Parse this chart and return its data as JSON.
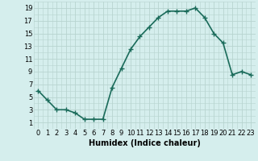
{
  "x": [
    0,
    1,
    2,
    3,
    4,
    5,
    6,
    7,
    8,
    9,
    10,
    11,
    12,
    13,
    14,
    15,
    16,
    17,
    18,
    19,
    20,
    21,
    22,
    23
  ],
  "y": [
    6.0,
    4.5,
    3.0,
    3.0,
    2.5,
    1.5,
    1.5,
    1.5,
    6.5,
    9.5,
    12.5,
    14.5,
    16.0,
    17.5,
    18.5,
    18.5,
    18.5,
    19.0,
    17.5,
    15.0,
    13.5,
    8.5,
    9.0,
    8.5
  ],
  "line_color": "#1a6b5a",
  "marker": "+",
  "marker_size": 4,
  "xlabel": "Humidex (Indice chaleur)",
  "xlim": [
    -0.5,
    23.5
  ],
  "ylim": [
    0,
    20
  ],
  "xticks": [
    0,
    1,
    2,
    3,
    4,
    5,
    6,
    7,
    8,
    9,
    10,
    11,
    12,
    13,
    14,
    15,
    16,
    17,
    18,
    19,
    20,
    21,
    22,
    23
  ],
  "yticks": [
    1,
    3,
    5,
    7,
    9,
    11,
    13,
    15,
    17,
    19
  ],
  "bg_color": "#d5eeed",
  "grid_color": "#b8d4d0",
  "xlabel_fontsize": 7,
  "tick_fontsize": 6,
  "line_width": 1.2
}
